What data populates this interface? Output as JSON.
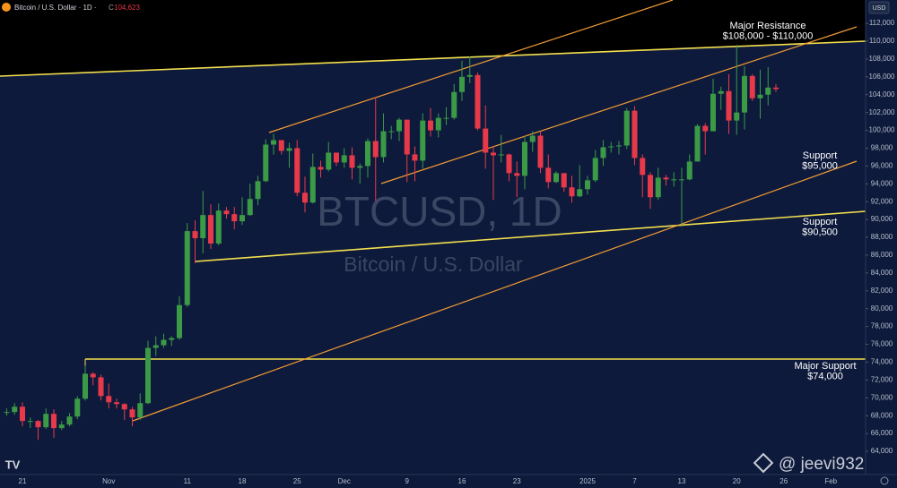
{
  "chart_data": {
    "type": "candlestick",
    "title": "Bitcoin / U.S. Dollar · 1D ·",
    "close_prefix": "C",
    "close_label": "104,623",
    "currency": "USD",
    "watermark": "BTCUSD, 1D",
    "watermark_sub": "Bitcoin / U.S. Dollar",
    "credit": "@ jeevi932",
    "up_color": "#3a9a46",
    "down_color": "#e8394a",
    "annotations": [
      {
        "lines": [
          "Major Resistance",
          "$108,000 - $110,000"
        ]
      },
      {
        "lines": [
          "Support",
          "$95,000"
        ]
      },
      {
        "lines": [
          "Support",
          "$90,500"
        ]
      },
      {
        "lines": [
          "Major Support",
          "$74,000"
        ]
      }
    ],
    "categories": [
      null,
      null,
      "21",
      null,
      null,
      null,
      null,
      null,
      null,
      null,
      null,
      null,
      null,
      "Nov",
      null,
      null,
      null,
      null,
      null,
      null,
      null,
      null,
      null,
      "11",
      null,
      null,
      null,
      null,
      null,
      null,
      "18",
      null,
      null,
      null,
      null,
      null,
      null,
      "25",
      null,
      null,
      null,
      null,
      null,
      "Dec",
      null,
      null,
      null,
      null,
      null,
      null,
      null,
      "9",
      null,
      null,
      null,
      null,
      null,
      null,
      "16",
      null,
      null,
      null,
      null,
      null,
      null,
      "23",
      null,
      null,
      null,
      null,
      null,
      null,
      null,
      null,
      "2025",
      null,
      null,
      null,
      null,
      null,
      "7",
      null,
      null,
      null,
      null,
      null,
      "13",
      null,
      null,
      null,
      null,
      null,
      null,
      "20",
      null,
      null,
      null,
      null,
      null,
      "26",
      null,
      null,
      null,
      null,
      null,
      "Feb"
    ],
    "open": [
      68300,
      68400,
      69000,
      67400,
      67400,
      66700,
      68200,
      66600,
      67000,
      67900,
      69900,
      72700,
      72300,
      70200,
      69500,
      69300,
      68700,
      67800,
      69400,
      75600,
      75900,
      76500,
      76700,
      80400,
      88700,
      87900,
      90500,
      87300,
      91000,
      90600,
      89800,
      90500,
      92300,
      94300,
      98400,
      98900,
      97700,
      98000,
      93000,
      91900,
      95900,
      95600,
      97500,
      96400,
      97200,
      95800,
      96000,
      98800,
      97000,
      99900,
      99900,
      101200,
      97300,
      96600,
      101100,
      100000,
      101400,
      101400,
      104300,
      106000,
      106200,
      100200,
      97500,
      97200,
      97300,
      95200,
      94900,
      98700,
      99400,
      95800,
      94200,
      95200,
      93600,
      92600,
      93400,
      94400,
      96900,
      98100,
      98200,
      98300,
      102200,
      96900,
      95000,
      92500,
      94700,
      94500,
      94500,
      94500,
      96500,
      100500,
      99900,
      104100,
      104400,
      101100,
      102000,
      106100,
      103600,
      104000,
      104800,
      null,
      null,
      null,
      null,
      null,
      null,
      null
    ],
    "high": [
      68800,
      69400,
      69500,
      67800,
      67500,
      68800,
      68700,
      67400,
      68300,
      70200,
      73600,
      72900,
      72600,
      71600,
      69900,
      69400,
      69000,
      70500,
      76400,
      76900,
      77200,
      76900,
      81400,
      89600,
      89900,
      93200,
      91700,
      91800,
      91400,
      91400,
      92500,
      94000,
      94900,
      99000,
      99600,
      98900,
      98600,
      98900,
      94800,
      97400,
      96600,
      98700,
      97500,
      98000,
      98100,
      96300,
      99100,
      103700,
      101900,
      100500,
      101400,
      101200,
      98200,
      101900,
      102500,
      101900,
      102600,
      105200,
      107800,
      108300,
      106500,
      102800,
      98200,
      99500,
      97400,
      96500,
      99400,
      99900,
      99900,
      97300,
      95400,
      95200,
      94900,
      96100,
      94900,
      97800,
      98900,
      98700,
      98800,
      102500,
      102700,
      97300,
      95300,
      95800,
      95000,
      95300,
      95800,
      97300,
      100700,
      100800,
      105800,
      104900,
      106300,
      109600,
      107200,
      106300,
      106800,
      107100,
      105200,
      null,
      null,
      null,
      null,
      null,
      null,
      null
    ],
    "low": [
      68000,
      68100,
      66800,
      66600,
      65300,
      66500,
      65500,
      66400,
      66800,
      67600,
      69700,
      71400,
      69700,
      68800,
      68800,
      67500,
      66800,
      67500,
      69300,
      74700,
      75600,
      75800,
      76500,
      80200,
      85100,
      86200,
      86700,
      87100,
      90100,
      88900,
      89400,
      90400,
      91600,
      94200,
      97300,
      97300,
      95800,
      92600,
      90800,
      91800,
      94700,
      95400,
      96000,
      95800,
      94500,
      94000,
      94700,
      92100,
      96400,
      99000,
      98800,
      94200,
      94300,
      95700,
      99300,
      99200,
      100600,
      101200,
      103300,
      105300,
      100000,
      95700,
      92200,
      96400,
      94300,
      92500,
      93400,
      97600,
      95200,
      93500,
      94100,
      93100,
      91900,
      92500,
      92800,
      94200,
      96000,
      97500,
      97300,
      97900,
      96100,
      92500,
      91200,
      92200,
      93800,
      93700,
      89200,
      94400,
      96500,
      97300,
      99900,
      102300,
      99600,
      99500,
      100100,
      103300,
      101300,
      102800,
      104300,
      null,
      null,
      null,
      null,
      null,
      null,
      null
    ],
    "close": [
      68400,
      69000,
      67400,
      67400,
      66700,
      68200,
      66600,
      67000,
      67900,
      69900,
      72700,
      72300,
      70200,
      69500,
      69300,
      68700,
      67800,
      69400,
      75600,
      75900,
      76500,
      76700,
      80400,
      88700,
      87900,
      90500,
      87300,
      91000,
      90600,
      89800,
      90500,
      92300,
      94300,
      98400,
      98900,
      97700,
      98000,
      93000,
      91900,
      95900,
      95600,
      97500,
      96400,
      97200,
      95800,
      96000,
      98800,
      97000,
      99900,
      99900,
      101200,
      97300,
      96600,
      101100,
      100000,
      101400,
      101400,
      104300,
      106000,
      106200,
      100200,
      97500,
      97200,
      97300,
      95200,
      94900,
      98700,
      99400,
      95800,
      94200,
      95200,
      93600,
      92600,
      93400,
      94400,
      96900,
      98100,
      98200,
      98300,
      102200,
      96900,
      95000,
      92500,
      94700,
      94500,
      94500,
      94500,
      96500,
      100500,
      99900,
      104100,
      104400,
      101100,
      102000,
      106100,
      103600,
      104000,
      104800,
      104623,
      null,
      null,
      null,
      null,
      null,
      null,
      null
    ],
    "ylim": [
      61390,
      114620
    ],
    "yticks": [
      {
        "value": 64000,
        "label": "64,000"
      },
      {
        "value": 66000,
        "label": "66,000"
      },
      {
        "value": 68000,
        "label": "68,000"
      },
      {
        "value": 70000,
        "label": "70,000"
      },
      {
        "value": 72000,
        "label": "72,000"
      },
      {
        "value": 74000,
        "label": "74,000"
      },
      {
        "value": 76000,
        "label": "76,000"
      },
      {
        "value": 78000,
        "label": "78,000"
      },
      {
        "value": 80000,
        "label": "80,000"
      },
      {
        "value": 82000,
        "label": "82,000"
      },
      {
        "value": 84000,
        "label": "84,000"
      },
      {
        "value": 86000,
        "label": "86,000"
      },
      {
        "value": 88000,
        "label": "88,000"
      },
      {
        "value": 90000,
        "label": "90,000"
      },
      {
        "value": 92000,
        "label": "92,000"
      },
      {
        "value": 94000,
        "label": "94,000"
      },
      {
        "value": 96000,
        "label": "96,000"
      },
      {
        "value": 98000,
        "label": "98,000"
      },
      {
        "value": 100000,
        "label": "100,000"
      },
      {
        "value": 102000,
        "label": "102,000"
      },
      {
        "value": 104000,
        "label": "104,000"
      },
      {
        "value": 106000,
        "label": "106,000"
      },
      {
        "value": 108000,
        "label": "108,000"
      },
      {
        "value": 110000,
        "label": "110,000"
      },
      {
        "value": 112000,
        "label": "112,000"
      }
    ],
    "grid": false
  }
}
